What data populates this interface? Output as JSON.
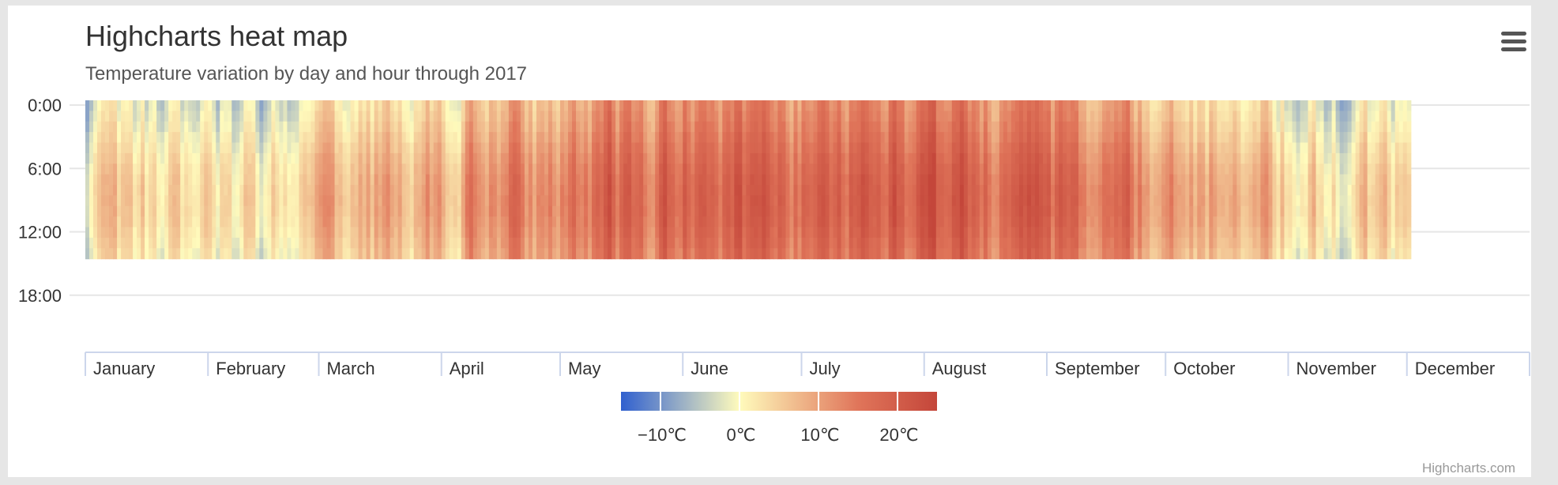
{
  "chart_data": {
    "type": "heatmap",
    "title": "Highcharts heat map",
    "subtitle": "Temperature variation by day and hour through 2017",
    "y_ticks": [
      "0:00",
      "6:00",
      "12:00",
      "18:00"
    ],
    "y_range_hours": [
      0,
      24
    ],
    "x_months": [
      "January",
      "February",
      "March",
      "April",
      "May",
      "June",
      "July",
      "August",
      "September",
      "October",
      "November",
      "December"
    ],
    "month_days": [
      31,
      28,
      31,
      30,
      31,
      30,
      31,
      31,
      30,
      31,
      30,
      31
    ],
    "x_range_days_shown": [
      1,
      335
    ],
    "hours_covered": 15,
    "grid": true,
    "legend_placement": "bottom-center",
    "color_axis": {
      "min": -15,
      "max": 25,
      "ticks": [
        "−10℃",
        "0℃",
        "10℃",
        "20℃"
      ],
      "stops": [
        {
          "value": -15,
          "color": "#3060cf"
        },
        {
          "value": 0,
          "color": "#fffbbc"
        },
        {
          "value": 15,
          "color": "#e0755a"
        },
        {
          "value": 25,
          "color": "#c4463a"
        }
      ]
    },
    "monthly_mean_temp_c": [
      -2,
      -1,
      4,
      9,
      14,
      16,
      16,
      15,
      11,
      6,
      0,
      0
    ]
  },
  "credits": "Highcharts.com"
}
